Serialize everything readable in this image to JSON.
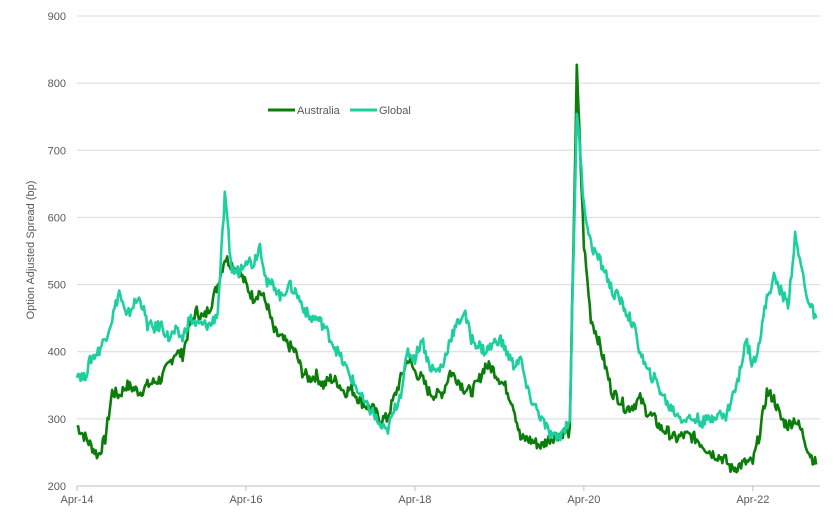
{
  "chart_data": {
    "type": "line",
    "title": "",
    "xlabel": "",
    "ylabel": "Option Adjusted Spread (bp)",
    "ylim": [
      200,
      900
    ],
    "yticks": [
      200,
      300,
      400,
      500,
      600,
      700,
      800,
      900
    ],
    "x_start": "Apr-14",
    "x_unit": "month",
    "xtick_labels": [
      "Apr-14",
      "Apr-16",
      "Apr-18",
      "Apr-20",
      "Apr-22"
    ],
    "xtick_months": [
      0,
      24,
      48,
      72,
      96
    ],
    "grid": true,
    "legend_position": "top-center",
    "series": [
      {
        "name": "Australia",
        "color": "#0b7d0b",
        "values": [
          290,
          275,
          260,
          245,
          270,
          340,
          335,
          350,
          345,
          340,
          350,
          355,
          360,
          380,
          400,
          395,
          440,
          460,
          450,
          470,
          500,
          540,
          530,
          520,
          500,
          480,
          490,
          470,
          430,
          420,
          410,
          400,
          370,
          360,
          365,
          350,
          360,
          355,
          340,
          345,
          330,
          320,
          315,
          300,
          300,
          330,
          360,
          390,
          370,
          360,
          340,
          335,
          340,
          370,
          360,
          345,
          340,
          355,
          380,
          375,
          360,
          345,
          320,
          270,
          270,
          265,
          260,
          270,
          275,
          280,
          280,
          820,
          560,
          450,
          420,
          380,
          340,
          330,
          315,
          320,
          330,
          310,
          300,
          285,
          280,
          270,
          275,
          275,
          270,
          260,
          250,
          245,
          240,
          225,
          230,
          235,
          235,
          280,
          340,
          330,
          300,
          290,
          300,
          280,
          250,
          232
        ]
      },
      {
        "name": "Global",
        "color": "#1dcf9f",
        "values": [
          370,
          360,
          390,
          400,
          420,
          450,
          490,
          450,
          470,
          480,
          440,
          435,
          440,
          420,
          430,
          420,
          450,
          440,
          440,
          440,
          460,
          630,
          520,
          520,
          540,
          530,
          560,
          500,
          500,
          480,
          500,
          490,
          470,
          450,
          450,
          440,
          420,
          400,
          380,
          360,
          340,
          320,
          310,
          290,
          280,
          310,
          340,
          400,
          390,
          420,
          380,
          370,
          380,
          420,
          440,
          460,
          420,
          410,
          400,
          410,
          420,
          400,
          380,
          390,
          340,
          320,
          300,
          280,
          270,
          280,
          300,
          760,
          620,
          560,
          540,
          520,
          490,
          480,
          460,
          440,
          400,
          370,
          360,
          340,
          320,
          310,
          300,
          300,
          300,
          295,
          300,
          310,
          300,
          330,
          360,
          420,
          380,
          420,
          480,
          510,
          490,
          470,
          570,
          520,
          470,
          450
        ]
      }
    ]
  }
}
